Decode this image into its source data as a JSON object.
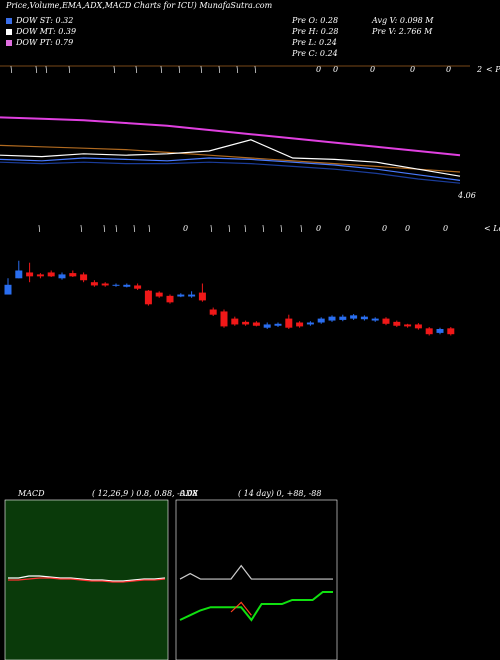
{
  "chart_data": {
    "type": "candlestick",
    "title": "Price,Volume,EMA,ADX,MACD Charts for ICU) MunafaSutra.com",
    "legend": [
      {
        "name": "DOW ST: 0.32",
        "color": "#3a6ee8"
      },
      {
        "name": "DOW MT: 0.39",
        "color": "#ffffff"
      },
      {
        "name": "DOW PT: 0.79",
        "color": "#e070e0"
      }
    ],
    "stats": [
      "Pre  O: 0.28",
      "Pre  H: 0.28",
      "Pre  L: 0.24",
      "Pre  C: 0.24",
      "Avg V: 0.098  M",
      "Pre  V: 2.766  M"
    ],
    "price_label": "4.06",
    "top_markers": [
      "\\",
      "\\",
      "\\",
      "\\",
      "\\",
      "\\",
      "\\",
      "\\",
      "\\",
      "\\",
      "\\",
      "\\",
      "0",
      "0",
      "0",
      "0",
      "0",
      "2",
      "< Pope"
    ],
    "lower_markers": [
      "\\",
      "\\",
      "\\",
      "\\",
      "\\",
      "\\",
      "0",
      "\\",
      "\\",
      "\\",
      "\\",
      "\\",
      "\\",
      "0",
      "0",
      "0",
      "0",
      "0",
      "< Lower"
    ],
    "up_color": "#2a6ef0",
    "down_color": "#f01818",
    "ylim": [
      0.22,
      0.36
    ],
    "open": [
      0.293,
      0.318,
      0.327,
      0.324,
      0.327,
      0.318,
      0.326,
      0.324,
      0.312,
      0.31,
      0.307,
      0.305,
      0.307,
      0.299,
      0.296,
      0.291,
      0.29,
      0.29,
      0.296,
      0.27,
      0.267,
      0.256,
      0.251,
      0.25,
      0.242,
      0.245,
      0.256,
      0.25,
      0.247,
      0.25,
      0.253,
      0.254,
      0.256,
      0.255,
      0.253,
      0.256,
      0.251,
      0.247,
      0.247,
      0.241,
      0.234,
      0.241
    ],
    "close": [
      0.308,
      0.33,
      0.321,
      0.321,
      0.321,
      0.324,
      0.321,
      0.315,
      0.307,
      0.307,
      0.308,
      0.308,
      0.302,
      0.278,
      0.29,
      0.281,
      0.293,
      0.293,
      0.284,
      0.262,
      0.244,
      0.247,
      0.247,
      0.245,
      0.247,
      0.248,
      0.242,
      0.244,
      0.25,
      0.256,
      0.259,
      0.259,
      0.261,
      0.259,
      0.256,
      0.248,
      0.245,
      0.244,
      0.241,
      0.232,
      0.24,
      0.232
    ],
    "high": [
      0.318,
      0.345,
      0.342,
      0.326,
      0.33,
      0.327,
      0.33,
      0.327,
      0.315,
      0.312,
      0.31,
      0.31,
      0.31,
      0.3,
      0.298,
      0.293,
      0.295,
      0.298,
      0.31,
      0.273,
      0.27,
      0.259,
      0.253,
      0.252,
      0.25,
      0.25,
      0.262,
      0.252,
      0.252,
      0.258,
      0.261,
      0.262,
      0.263,
      0.261,
      0.258,
      0.258,
      0.253,
      0.248,
      0.249,
      0.243,
      0.242,
      0.243
    ],
    "low": [
      0.293,
      0.318,
      0.312,
      0.318,
      0.32,
      0.316,
      0.32,
      0.312,
      0.305,
      0.305,
      0.305,
      0.304,
      0.3,
      0.276,
      0.288,
      0.279,
      0.289,
      0.288,
      0.282,
      0.26,
      0.242,
      0.245,
      0.245,
      0.244,
      0.24,
      0.243,
      0.24,
      0.242,
      0.245,
      0.248,
      0.251,
      0.252,
      0.254,
      0.253,
      0.251,
      0.246,
      0.243,
      0.242,
      0.239,
      0.23,
      0.232,
      0.23
    ],
    "ema": {
      "ylim": [
        0,
        100
      ],
      "series": [
        {
          "color": "#e040e0",
          "values": [
            59,
            58,
            57,
            55,
            53,
            50,
            47,
            44,
            41,
            38,
            35,
            32
          ]
        },
        {
          "color": "#b06a20",
          "values": [
            39,
            38,
            37,
            36,
            34,
            32,
            30,
            28,
            26,
            24,
            22,
            20
          ]
        },
        {
          "color": "#ffffff",
          "values": [
            32,
            31,
            33,
            32,
            33,
            35,
            43,
            30,
            29,
            27,
            22,
            17
          ]
        },
        {
          "color": "#4a7cff",
          "values": [
            29,
            28,
            30,
            29,
            28,
            30,
            29,
            27,
            25,
            22,
            18,
            14
          ]
        },
        {
          "color": "#1a3c9a",
          "values": [
            27,
            26,
            27,
            26,
            26,
            27,
            26,
            24,
            22,
            19,
            15,
            12
          ]
        }
      ]
    },
    "macd": {
      "title": "MACD",
      "params": "( 12,26,9 ) 0.8, 0.88, -0.08",
      "background": "#0a3a0a",
      "ylim": [
        -4,
        4
      ],
      "series": [
        {
          "color": "#ffffff",
          "values": [
            0.1,
            0.1,
            0.2,
            0.2,
            0.15,
            0.1,
            0.1,
            0.05,
            0,
            0,
            -0.05,
            -0.05,
            0,
            0.05,
            0.05,
            0.1
          ]
        },
        {
          "color": "#ff3030",
          "values": [
            0,
            0,
            0.05,
            0.1,
            0.1,
            0.05,
            0.05,
            0,
            -0.05,
            -0.05,
            -0.1,
            -0.1,
            -0.05,
            0,
            0,
            0.05
          ]
        }
      ]
    },
    "adx": {
      "title": "ADX",
      "params": "( 14  day) 0, +88, -88",
      "ylim": [
        0,
        100
      ],
      "series": [
        {
          "color": "#cccccc",
          "values": [
            50.6,
            54,
            50.6,
            50.6,
            50.6,
            50.6,
            59,
            50.6,
            50.6,
            50.6,
            50.6,
            50.6,
            50.6,
            50.6,
            50.6,
            50.6
          ]
        },
        {
          "color": "#10e010",
          "values": [
            25,
            28,
            31,
            33,
            33,
            33,
            33,
            25,
            35,
            35,
            35,
            37.5,
            37.5,
            37.5,
            42.5,
            42.5
          ]
        },
        {
          "color": "#ff4020",
          "values": [
            null,
            null,
            null,
            null,
            null,
            30,
            36,
            28,
            null,
            null,
            null,
            null,
            null,
            null,
            null,
            null
          ]
        }
      ]
    }
  }
}
